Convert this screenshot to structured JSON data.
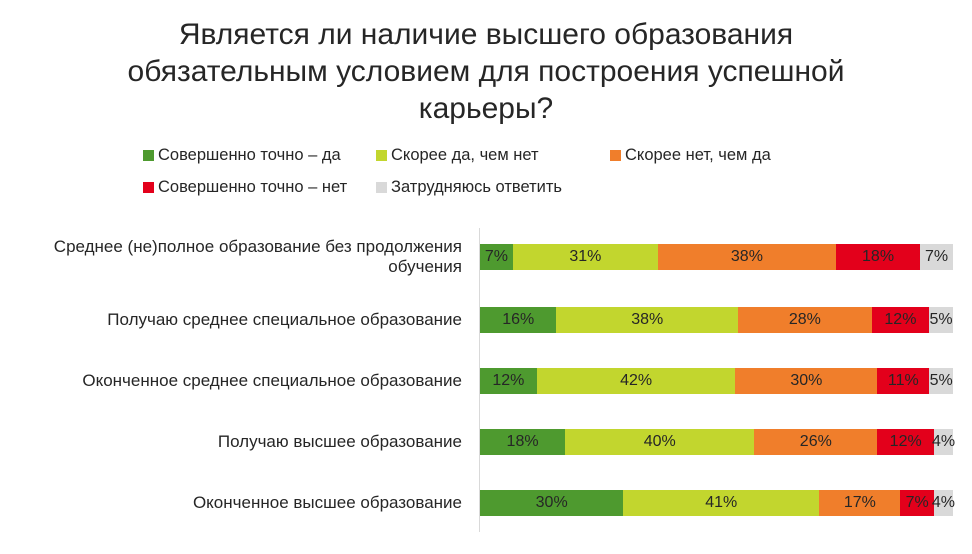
{
  "chart_data": {
    "type": "bar",
    "stacked": true,
    "orientation": "horizontal",
    "percent": true,
    "title": "Является ли наличие высшего образования обязательным условием для построения успешной карьеры?",
    "categories": [
      "Среднее (не)полное образование без продолжения обучения",
      "Получаю среднее специальное образование",
      "Оконченное среднее специальное образование",
      "Получаю высшее образование",
      "Оконченное высшее образование"
    ],
    "series": [
      {
        "name": "Совершенно точно – да",
        "color": "#4e9a2f",
        "values": [
          7,
          16,
          12,
          18,
          30
        ]
      },
      {
        "name": "Скорее да, чем нет",
        "color": "#c2d62e",
        "values": [
          31,
          38,
          42,
          40,
          41
        ]
      },
      {
        "name": "Скорее нет, чем да",
        "color": "#f07e2b",
        "values": [
          38,
          28,
          30,
          26,
          17
        ]
      },
      {
        "name": "Совершенно точно – нет",
        "color": "#e3001b",
        "values": [
          18,
          12,
          11,
          12,
          7
        ]
      },
      {
        "name": "Затрудняюсь ответить",
        "color": "#d9d9d9",
        "values": [
          7,
          5,
          5,
          4,
          4
        ]
      }
    ],
    "data_labels": [
      [
        "7%",
        "16%",
        "12%",
        "18%",
        "30%"
      ],
      [
        "31%",
        "38%",
        "42%",
        "40%",
        "41%"
      ],
      [
        "38%",
        "28%",
        "30%",
        "26%",
        "17%"
      ],
      [
        "18%",
        "12%",
        "11%",
        "12%",
        "7%"
      ],
      [
        "7%",
        "5%",
        "5%",
        "4%",
        "4%"
      ]
    ],
    "legend_position": "top",
    "grid": false
  }
}
